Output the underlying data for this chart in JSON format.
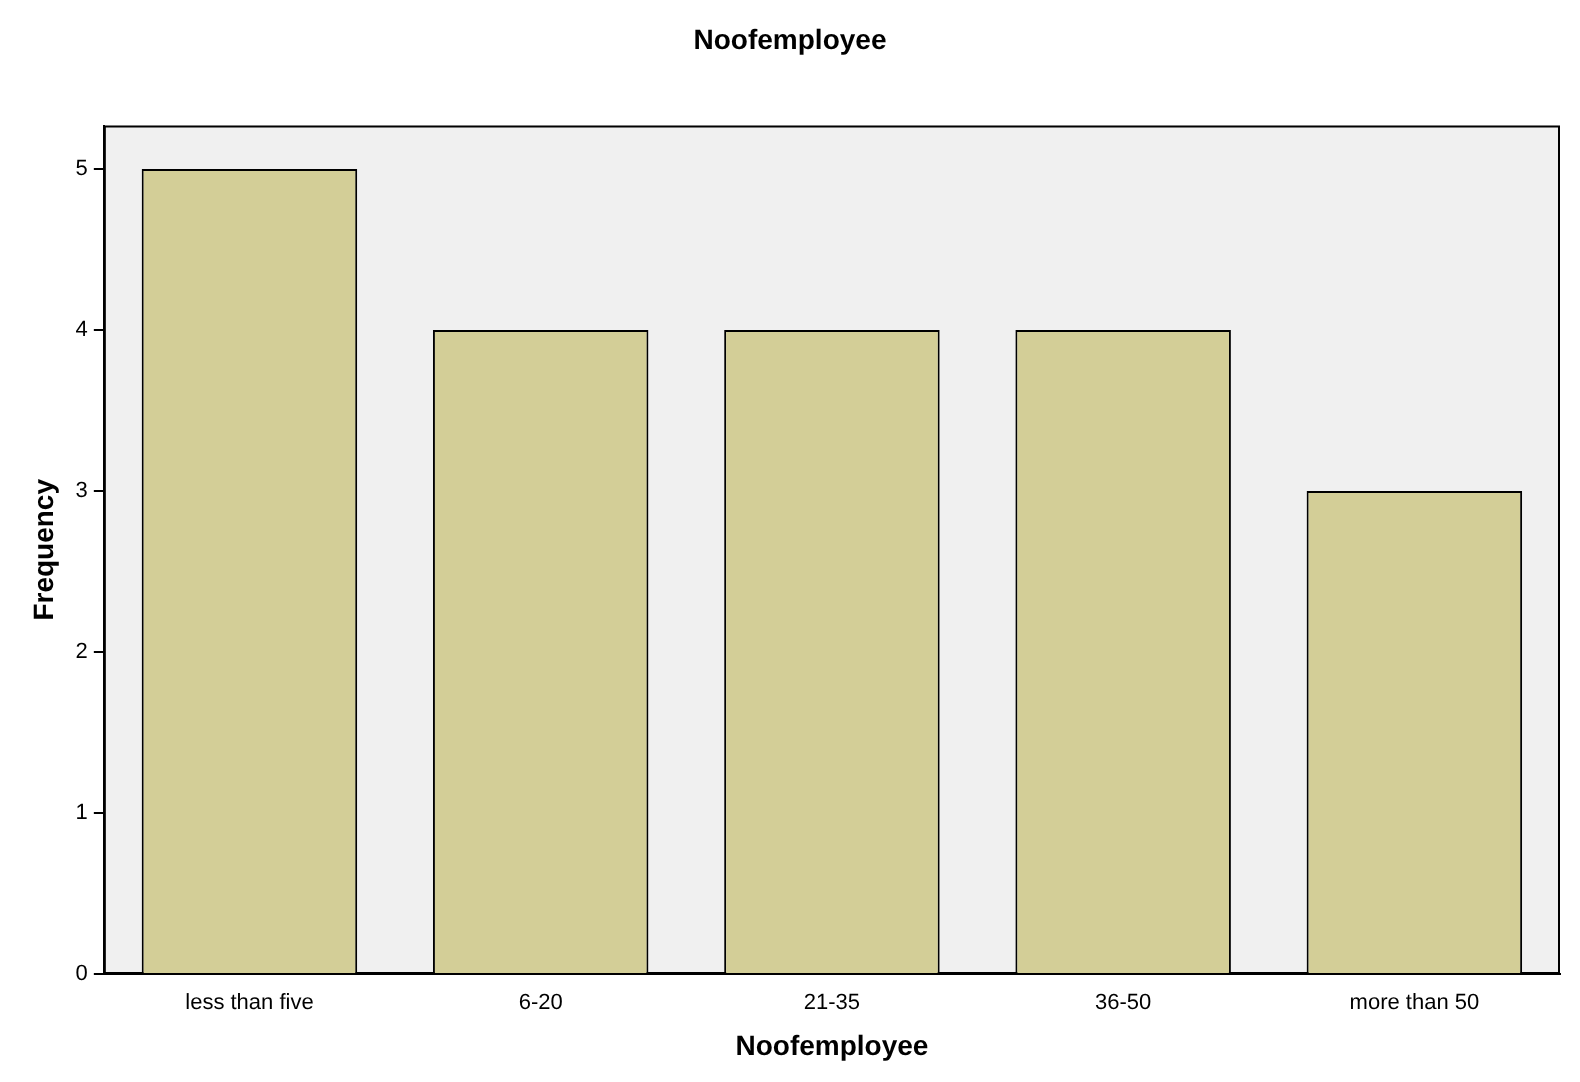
{
  "chart_data": {
    "type": "bar",
    "title": "Noofemployee",
    "xlabel": "Noofemployee",
    "ylabel": "Frequency",
    "categories": [
      "less than five",
      "6-20",
      "21-35",
      "36-50",
      "more than 50"
    ],
    "values": [
      5,
      4,
      4,
      4,
      3
    ],
    "color": "#d3ce97",
    "ylim": [
      0,
      5.27
    ],
    "yticks": [
      0,
      1,
      2,
      3,
      4,
      5
    ],
    "grid": false,
    "legend": false
  }
}
